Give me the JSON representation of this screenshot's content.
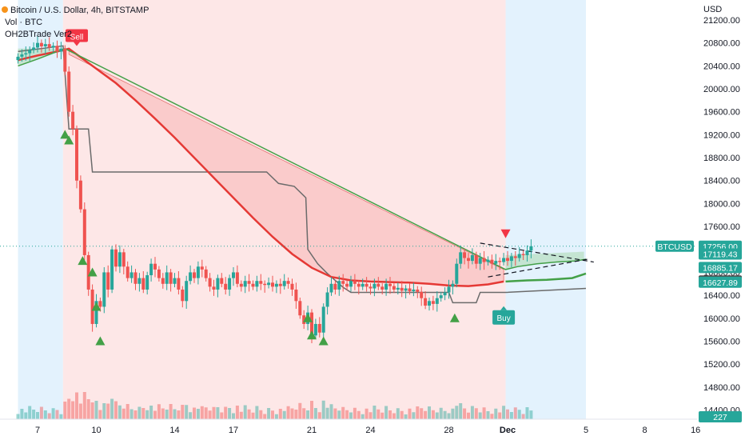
{
  "header": {
    "title": "Bitcoin / U.S. Dollar, 4h, BITSTAMP",
    "indicator_1": "Vol · BTC",
    "indicator_2": "OH2BTrade Ver2"
  },
  "currency_label": "USD",
  "chart_data": {
    "type": "candlestick",
    "symbol": "BTCUSD",
    "title": "Bitcoin / U.S. Dollar, 4h, BITSTAMP",
    "ylim": [
      14200,
      21400
    ],
    "y_ticks": [
      14400,
      14800,
      15200,
      15600,
      16000,
      16400,
      16800,
      17200,
      17600,
      18000,
      18400,
      18800,
      19200,
      19600,
      20000,
      20400,
      20800,
      21200
    ],
    "y_tick_labels": [
      "14400.00",
      "14800.00",
      "15200.00",
      "15600.00",
      "16000.00",
      "16400.00",
      "16800.00",
      "17200.00",
      "17600.00",
      "18000.00",
      "18400.00",
      "18800.00",
      "19200.00",
      "19600.00",
      "20000.00",
      "20400.00",
      "20800.00",
      "21200.00"
    ],
    "x_ticks": [
      {
        "label": "7",
        "day": 7
      },
      {
        "label": "10",
        "day": 10
      },
      {
        "label": "14",
        "day": 14
      },
      {
        "label": "17",
        "day": 17
      },
      {
        "label": "21",
        "day": 21
      },
      {
        "label": "24",
        "day": 24
      },
      {
        "label": "28",
        "day": 28
      },
      {
        "label": "Dec",
        "day": 31,
        "bold": true
      },
      {
        "label": "5",
        "day": 35
      },
      {
        "label": "8",
        "day": 38
      },
      {
        "label": "16",
        "day": 40.6
      }
    ],
    "price_badges": [
      {
        "label": "BTCUSD",
        "color": "#26a69a",
        "kind": "symbol",
        "price": 17256
      },
      {
        "label": "17256.00",
        "price": 17256,
        "color": "#26a69a"
      },
      {
        "label": "17119.43",
        "price": 17119.43,
        "color": "#26a69a"
      },
      {
        "label": "16885.17",
        "price": 16885.17,
        "color": "#26a69a"
      },
      {
        "label": "16648.50",
        "price": 16648.5,
        "color": "#4a4a4a"
      },
      {
        "label": "16627.89",
        "price": 16627.89,
        "color": "#26a69a"
      },
      {
        "label": "227",
        "color": "#26a69a",
        "kind": "volume"
      }
    ],
    "signals": [
      {
        "label": "Sell",
        "day": 9.0,
        "price": 20900,
        "color": "#f23645"
      },
      {
        "label": "Buy",
        "day": 30.8,
        "price": 16000,
        "color": "#26a69a"
      }
    ],
    "zones": [
      {
        "from_day": 6.0,
        "to_day": 8.3,
        "color": "#e3f2fd"
      },
      {
        "from_day": 8.3,
        "to_day": 30.9,
        "color": "#fde7e7"
      },
      {
        "from_day": 30.9,
        "to_day": 35.0,
        "color": "#e3f2fd"
      }
    ],
    "moving_average_red": [
      [
        6,
        20500
      ],
      [
        7,
        20580
      ],
      [
        8,
        20650
      ],
      [
        8.6,
        20700
      ],
      [
        9,
        20600
      ],
      [
        10,
        20350
      ],
      [
        11,
        20100
      ],
      [
        12,
        19800
      ],
      [
        13,
        19480
      ],
      [
        14,
        19150
      ],
      [
        15,
        18800
      ],
      [
        16,
        18450
      ],
      [
        17,
        18100
      ],
      [
        18,
        17750
      ],
      [
        19,
        17420
      ],
      [
        20,
        17120
      ],
      [
        21,
        16880
      ],
      [
        22,
        16720
      ],
      [
        23,
        16660
      ],
      [
        24,
        16640
      ],
      [
        25,
        16630
      ],
      [
        26,
        16620
      ],
      [
        27,
        16600
      ],
      [
        28,
        16570
      ],
      [
        29,
        16560
      ],
      [
        30,
        16590
      ],
      [
        30.8,
        16640
      ]
    ],
    "ema_green": [
      [
        6,
        20400
      ],
      [
        7,
        20520
      ],
      [
        8,
        20650
      ],
      [
        8.4,
        20700
      ],
      [
        30.9,
        16850
      ],
      [
        31.5,
        16900
      ],
      [
        32.5,
        16950
      ],
      [
        33.5,
        16980
      ],
      [
        34.5,
        17000
      ],
      [
        35,
        17030
      ]
    ],
    "green_support": [
      [
        30.9,
        16640
      ],
      [
        32,
        16660
      ],
      [
        33,
        16670
      ],
      [
        34.3,
        16700
      ],
      [
        35,
        16780
      ]
    ],
    "channel_line": [
      [
        6,
        20650
      ],
      [
        8.3,
        20750
      ],
      [
        8.6,
        19300
      ],
      [
        9.6,
        19300
      ],
      [
        9.8,
        18550
      ],
      [
        14,
        18550
      ],
      [
        17,
        18550
      ],
      [
        18.7,
        18550
      ],
      [
        19.3,
        18350
      ],
      [
        20.1,
        18300
      ],
      [
        20.7,
        18100
      ],
      [
        20.8,
        17200
      ],
      [
        21.3,
        16950
      ],
      [
        21.8,
        16780
      ],
      [
        22.6,
        16540
      ],
      [
        23,
        16450
      ],
      [
        26,
        16450
      ],
      [
        28,
        16450
      ],
      [
        28.2,
        16270
      ],
      [
        29.4,
        16270
      ],
      [
        29.6,
        16450
      ],
      [
        30.9,
        16450
      ],
      [
        35,
        16520
      ]
    ],
    "dashed_lines": [
      {
        "from": [
          29.6,
          17310
        ],
        "to": [
          35.4,
          16980
        ]
      },
      {
        "from": [
          30,
          16720
        ],
        "to": [
          35.1,
          17030
        ]
      }
    ],
    "candles": [
      [
        6.0,
        20500,
        20560
      ],
      [
        6.2,
        20560,
        20600
      ],
      [
        6.4,
        20600,
        20620
      ],
      [
        6.6,
        20620,
        20680
      ],
      [
        6.8,
        20680,
        20720
      ],
      [
        7.0,
        20720,
        20800
      ],
      [
        7.2,
        20800,
        20740
      ],
      [
        7.4,
        20740,
        20780
      ],
      [
        7.6,
        20780,
        20720
      ],
      [
        7.8,
        20720,
        20750
      ],
      [
        8.0,
        20750,
        20650
      ],
      [
        8.2,
        20650,
        20700
      ],
      [
        8.4,
        20700,
        20300
      ],
      [
        8.6,
        20300,
        19600
      ],
      [
        8.8,
        19600,
        19300
      ],
      [
        9.0,
        19300,
        18400
      ],
      [
        9.2,
        18400,
        17900
      ],
      [
        9.4,
        17900,
        17100
      ],
      [
        9.6,
        17100,
        16500
      ],
      [
        9.8,
        16500,
        15900
      ],
      [
        10.0,
        15900,
        16300
      ],
      [
        10.2,
        16300,
        16200
      ],
      [
        10.4,
        16200,
        16800
      ],
      [
        10.6,
        16800,
        16500
      ],
      [
        10.8,
        16500,
        17200
      ],
      [
        11.0,
        17200,
        16900
      ],
      [
        11.2,
        16900,
        17150
      ],
      [
        11.4,
        17150,
        16900
      ],
      [
        11.6,
        16900,
        16700
      ],
      [
        11.8,
        16700,
        16800
      ],
      [
        12.0,
        16800,
        16600
      ],
      [
        12.2,
        16600,
        16700
      ],
      [
        12.4,
        16700,
        16500
      ],
      [
        12.6,
        16500,
        16750
      ],
      [
        12.8,
        16750,
        16950
      ],
      [
        13.0,
        16950,
        16850
      ],
      [
        13.2,
        16850,
        16700
      ],
      [
        13.4,
        16700,
        16600
      ],
      [
        13.6,
        16600,
        16800
      ],
      [
        13.8,
        16800,
        16600
      ],
      [
        14.0,
        16600,
        16700
      ],
      [
        14.2,
        16700,
        16500
      ],
      [
        14.4,
        16500,
        16300
      ],
      [
        14.6,
        16300,
        16650
      ],
      [
        14.8,
        16650,
        16800
      ],
      [
        15.0,
        16800,
        16700
      ],
      [
        15.2,
        16700,
        16900
      ],
      [
        15.4,
        16900,
        16850
      ],
      [
        15.6,
        16850,
        16700
      ],
      [
        15.8,
        16700,
        16550
      ],
      [
        16.0,
        16550,
        16500
      ],
      [
        16.2,
        16500,
        16700
      ],
      [
        16.4,
        16700,
        16600
      ],
      [
        16.6,
        16600,
        16500
      ],
      [
        16.8,
        16500,
        16700
      ],
      [
        17.0,
        16700,
        16800
      ],
      [
        17.2,
        16800,
        16600
      ],
      [
        17.4,
        16600,
        16550
      ],
      [
        17.6,
        16550,
        16650
      ],
      [
        17.8,
        16650,
        16600
      ],
      [
        18.0,
        16600,
        16550
      ],
      [
        18.2,
        16550,
        16650
      ],
      [
        18.4,
        16650,
        16600
      ],
      [
        18.6,
        16600,
        16580
      ],
      [
        18.8,
        16580,
        16620
      ],
      [
        19.0,
        16620,
        16550
      ],
      [
        19.2,
        16550,
        16600
      ],
      [
        19.4,
        16600,
        16560
      ],
      [
        19.6,
        16560,
        16650
      ],
      [
        19.8,
        16650,
        16600
      ],
      [
        20.0,
        16600,
        16500
      ],
      [
        20.2,
        16500,
        16300
      ],
      [
        20.4,
        16300,
        16050
      ],
      [
        20.6,
        16050,
        15900
      ],
      [
        20.8,
        15900,
        16100
      ],
      [
        21.0,
        16100,
        15700
      ],
      [
        21.2,
        15700,
        15900
      ],
      [
        21.4,
        15900,
        15750
      ],
      [
        21.6,
        15750,
        16200
      ],
      [
        21.8,
        16200,
        16450
      ],
      [
        22.0,
        16450,
        16600
      ],
      [
        22.2,
        16600,
        16500
      ],
      [
        22.4,
        16500,
        16650
      ],
      [
        22.6,
        16650,
        16600
      ],
      [
        22.8,
        16600,
        16550
      ],
      [
        23.0,
        16550,
        16650
      ],
      [
        23.2,
        16650,
        16600
      ],
      [
        23.4,
        16600,
        16550
      ],
      [
        23.6,
        16550,
        16600
      ],
      [
        23.8,
        16600,
        16550
      ],
      [
        24.0,
        16550,
        16520
      ],
      [
        24.2,
        16520,
        16600
      ],
      [
        24.4,
        16600,
        16550
      ],
      [
        24.6,
        16550,
        16500
      ],
      [
        24.8,
        16500,
        16600
      ],
      [
        25.0,
        16600,
        16560
      ],
      [
        25.2,
        16560,
        16500
      ],
      [
        25.4,
        16500,
        16530
      ],
      [
        25.6,
        16530,
        16480
      ],
      [
        25.8,
        16480,
        16520
      ],
      [
        26.0,
        16520,
        16470
      ],
      [
        26.2,
        16470,
        16500
      ],
      [
        26.4,
        16500,
        16460
      ],
      [
        26.6,
        16460,
        16350
      ],
      [
        26.8,
        16350,
        16220
      ],
      [
        27.0,
        16220,
        16300
      ],
      [
        27.2,
        16300,
        16250
      ],
      [
        27.4,
        16250,
        16350
      ],
      [
        27.6,
        16350,
        16400
      ],
      [
        27.8,
        16400,
        16450
      ],
      [
        28.0,
        16450,
        16550
      ],
      [
        28.2,
        16550,
        16600
      ],
      [
        28.4,
        16600,
        16950
      ],
      [
        28.6,
        16950,
        17150
      ],
      [
        28.8,
        17150,
        17050
      ],
      [
        29.0,
        17050,
        17000
      ],
      [
        29.2,
        17000,
        17100
      ],
      [
        29.4,
        17100,
        16950
      ],
      [
        29.6,
        16950,
        17050
      ],
      [
        29.8,
        17050,
        16980
      ],
      [
        30.0,
        16980,
        17020
      ],
      [
        30.2,
        17020,
        16950
      ],
      [
        30.4,
        16950,
        17000
      ],
      [
        30.6,
        17000,
        16980
      ],
      [
        30.8,
        16980,
        17050
      ],
      [
        31.0,
        17050,
        17000
      ],
      [
        31.2,
        17000,
        17080
      ],
      [
        31.4,
        17080,
        17050
      ],
      [
        31.6,
        17050,
        17120
      ],
      [
        31.8,
        17120,
        17100
      ],
      [
        32.0,
        17100,
        17180
      ],
      [
        32.2,
        17180,
        17256
      ]
    ]
  }
}
